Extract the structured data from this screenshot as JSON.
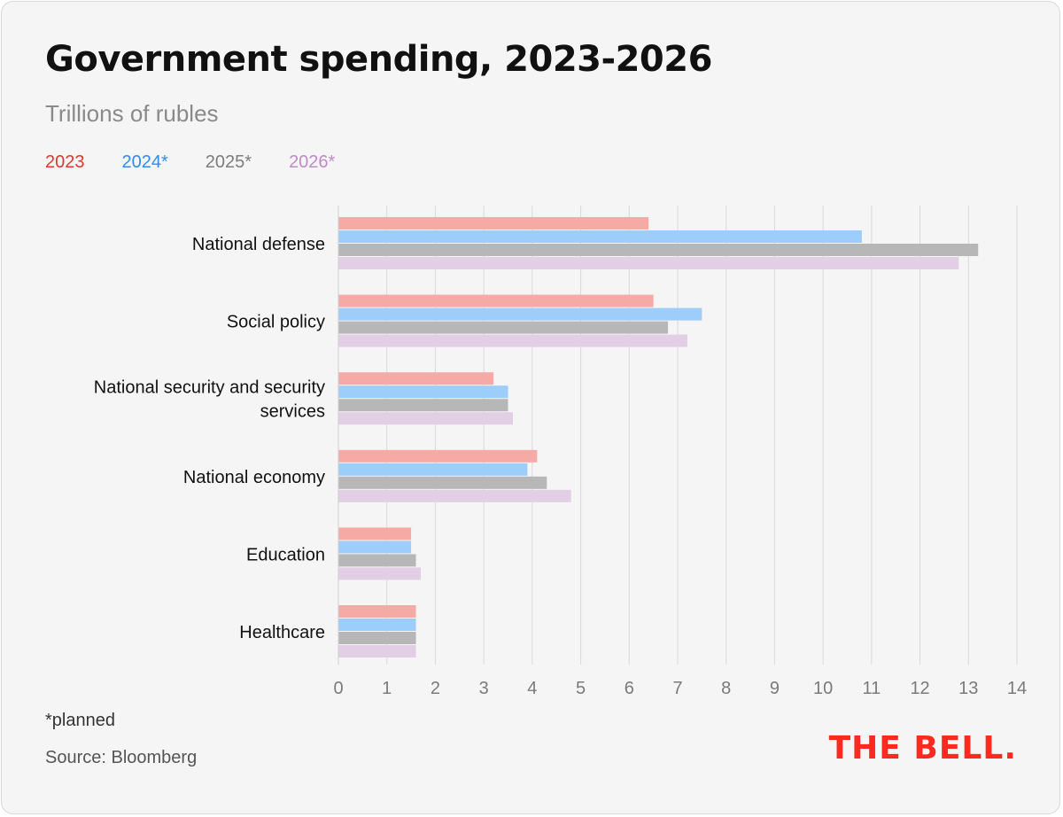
{
  "title": "Government spending, 2023-2026",
  "subtitle": "Trillions of rubles",
  "footnote": "*planned",
  "source": "Source: Bloomberg",
  "logo": "THE BELL.",
  "legend": [
    {
      "label": "2023",
      "color": "#e2372b"
    },
    {
      "label": "2024*",
      "color": "#2f8cf0"
    },
    {
      "label": "2025*",
      "color": "#7d7d7d"
    },
    {
      "label": "2026*",
      "color": "#c08ac8"
    }
  ],
  "chart_data": {
    "type": "bar",
    "orientation": "horizontal",
    "categories": [
      [
        "National defense"
      ],
      [
        "Social policy"
      ],
      [
        "National security and security",
        "services"
      ],
      [
        "National economy"
      ],
      [
        "Education"
      ],
      [
        "Healthcare"
      ]
    ],
    "series": [
      {
        "name": "2023",
        "color": "#f5aaa6",
        "values": [
          6.4,
          6.5,
          3.2,
          4.1,
          1.5,
          1.6
        ]
      },
      {
        "name": "2024*",
        "color": "#9dcdfa",
        "values": [
          10.8,
          7.5,
          3.5,
          3.9,
          1.5,
          1.6
        ]
      },
      {
        "name": "2025*",
        "color": "#b7b7b7",
        "values": [
          13.2,
          6.8,
          3.5,
          4.3,
          1.6,
          1.6
        ]
      },
      {
        "name": "2026*",
        "color": "#e3cfe5",
        "values": [
          12.8,
          7.2,
          3.6,
          4.8,
          1.7,
          1.6
        ]
      }
    ],
    "xlim": [
      0,
      14
    ],
    "xticks": [
      "0",
      "1",
      "2",
      "3",
      "4",
      "5",
      "6",
      "7",
      "8",
      "9",
      "10",
      "11",
      "12",
      "13",
      "14"
    ],
    "grid": true,
    "legend_position": "top-left"
  }
}
